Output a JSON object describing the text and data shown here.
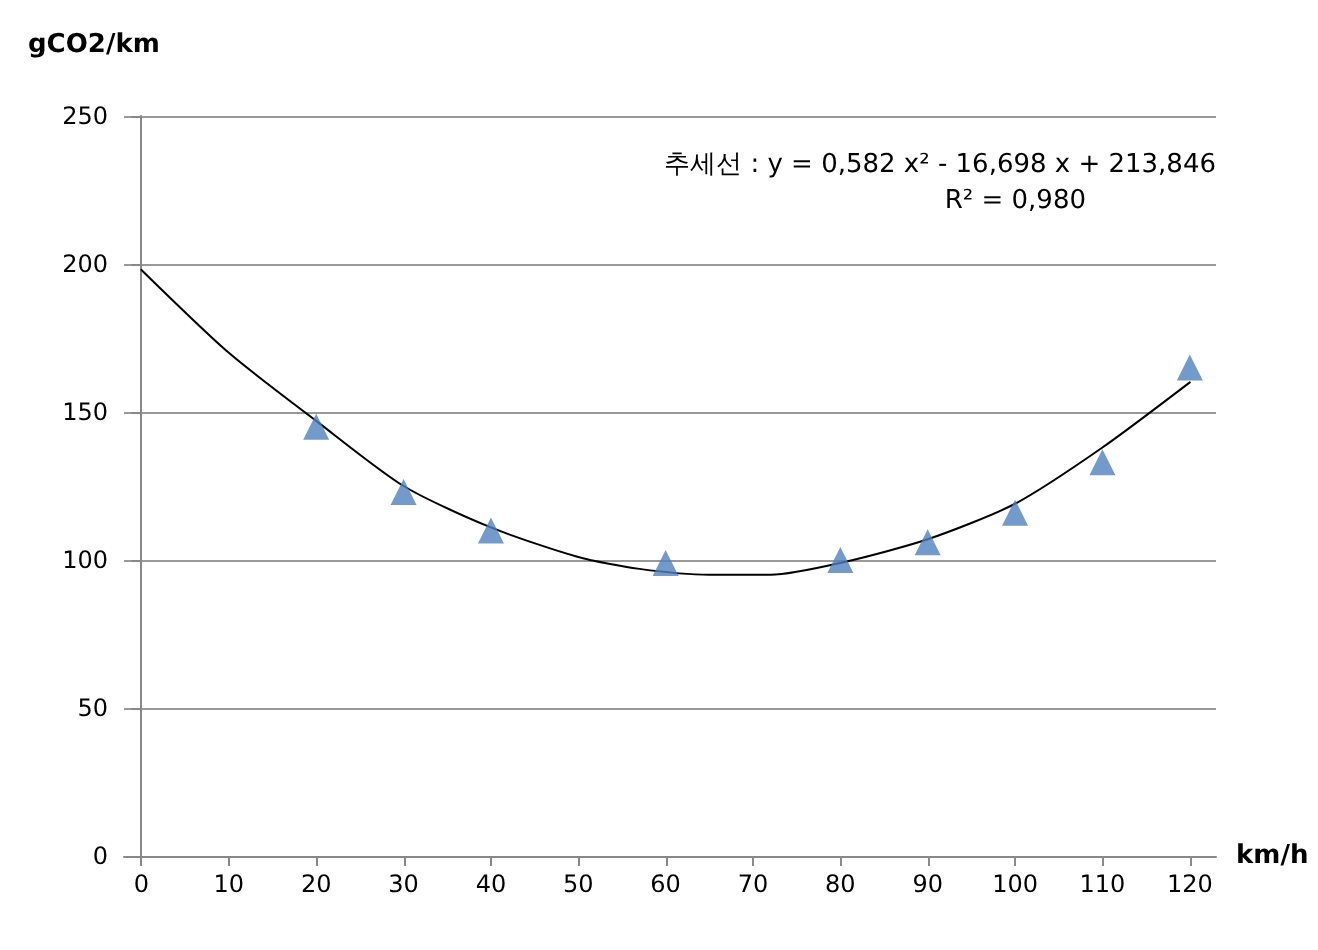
{
  "chart_data": {
    "type": "scatter",
    "xlabel": "km/h",
    "ylabel": "gCO2/km",
    "annotations": [
      "추세선 : y = 0,582 x² - 16,698 x + 213,846",
      "R² = 0,980"
    ],
    "xlim": [
      -2,
      123
    ],
    "xticks": [
      0,
      10,
      20,
      30,
      40,
      50,
      60,
      70,
      80,
      90,
      100,
      110,
      120
    ],
    "ylim": [
      0,
      250
    ],
    "yticks": [
      0,
      50,
      100,
      150,
      200,
      250
    ],
    "grid": "y",
    "marker": "triangle",
    "series": [
      {
        "color": "#4f81bd",
        "x": [
          20,
          30,
          40,
          60,
          80,
          90,
          100,
          110,
          120
        ],
        "values": [
          145,
          123,
          110,
          99,
          100,
          106,
          116,
          133,
          165
        ]
      },
      {
        "type": "line",
        "color": "#000000",
        "marker": "none",
        "line_style": "solid",
        "x": [
          0,
          10,
          20,
          30,
          40,
          50,
          57,
          65,
          72,
          80,
          90,
          100,
          110,
          120
        ],
        "values": [
          198,
          170,
          147,
          125,
          111,
          101,
          97,
          95,
          95,
          99,
          107,
          119,
          138,
          160
        ]
      }
    ]
  }
}
